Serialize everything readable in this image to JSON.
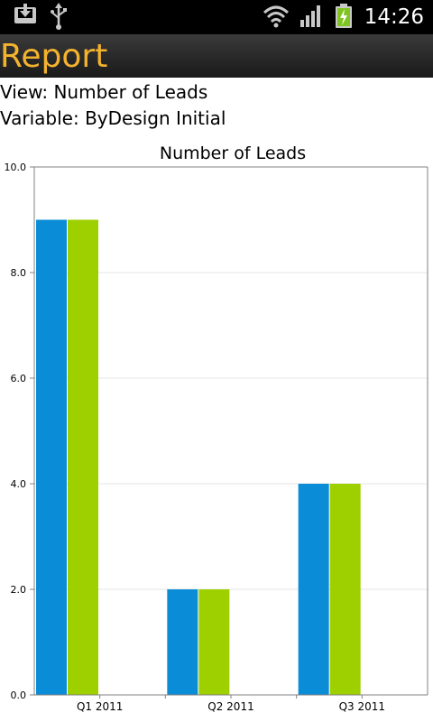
{
  "status_bar": {
    "time": "14:26",
    "icons": [
      "download-icon",
      "usb-icon",
      "wifi-icon",
      "signal-icon",
      "battery-charging-icon"
    ]
  },
  "header": {
    "title": "Report"
  },
  "info": {
    "view": "View: Number of Leads",
    "variable": "Variable: ByDesign Initial"
  },
  "colors": {
    "title_text": "#f4b32e",
    "series_1": "#0a8cd6",
    "series_2": "#9ed000",
    "grid": "#e6e6e6",
    "axis": "#808080"
  },
  "chart_data": {
    "type": "bar",
    "title": "Number of Leads",
    "categories": [
      "Q1 2011",
      "Q2 2011",
      "Q3 2011"
    ],
    "series": [
      {
        "values": [
          9,
          2,
          4
        ],
        "color": "#0a8cd6"
      },
      {
        "values": [
          9,
          2,
          4
        ],
        "color": "#9ed000"
      }
    ],
    "ylim": [
      0,
      10
    ],
    "yticks": [
      "0.0",
      "2.0",
      "4.0",
      "6.0",
      "8.0",
      "10.0"
    ],
    "xlabel": "",
    "ylabel": "",
    "grid": true
  }
}
